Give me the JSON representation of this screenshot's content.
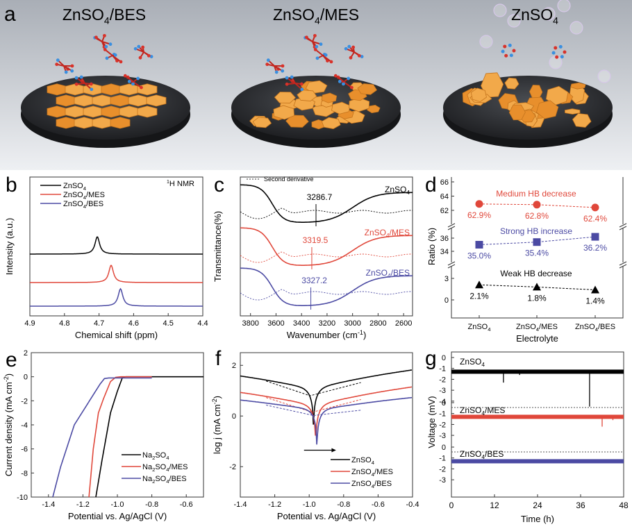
{
  "panel_a": {
    "label": "a",
    "scenes": [
      {
        "title": "ZnSO4/BES",
        "title_main": "ZnSO",
        "title_sub": "4",
        "title_suffix": "/BES",
        "description": "flat, dense hexagonal Zn deposit with BES molecules"
      },
      {
        "title": "ZnSO4/MES",
        "title_main": "ZnSO",
        "title_sub": "4",
        "title_suffix": "/MES",
        "description": "moderately ordered Zn plates with MES molecules"
      },
      {
        "title": "ZnSO4",
        "title_main": "ZnSO",
        "title_sub": "4",
        "title_suffix": "",
        "description": "random dendritic Zn plates with hydrogen bubbles"
      }
    ]
  },
  "chart_data": [
    {
      "id": "b",
      "type": "line",
      "title": "",
      "annotation": "1H NMR",
      "xlabel": "Chemical shift (ppm)",
      "ylabel": "Intensity (a.u.)",
      "xlim": [
        4.9,
        4.4
      ],
      "x_ticks": [
        "4.9",
        "4.8",
        "4.7",
        "4.6",
        "4.5",
        "4.4"
      ],
      "legend": "top-left",
      "series": [
        {
          "name": "ZnSO4",
          "color": "#000000",
          "peak_ppm": 4.705
        },
        {
          "name": "ZnSO4/MES",
          "color": "#e0473a",
          "peak_ppm": 4.665
        },
        {
          "name": "ZnSO4/BES",
          "color": "#4b4aa3",
          "peak_ppm": 4.638
        }
      ]
    },
    {
      "id": "c",
      "type": "line",
      "xlabel": "Wavenumber (cm-1)",
      "ylabel": "Transmittance(%)",
      "xlim": [
        3880,
        2530
      ],
      "x_ticks": [
        "3800",
        "3600",
        "3400",
        "3200",
        "3000",
        "2800",
        "2600"
      ],
      "legend_entries": [
        "Second derivative"
      ],
      "series": [
        {
          "name": "ZnSO4",
          "color": "#000000",
          "minimum_cm1": 3286.7,
          "label": "3286.7"
        },
        {
          "name": "ZnSO4/MES",
          "color": "#e0473a",
          "minimum_cm1": 3319.5,
          "label": "3319.5"
        },
        {
          "name": "ZnSO4/BES",
          "color": "#4b4aa3",
          "minimum_cm1": 3327.2,
          "label": "3327.2"
        }
      ]
    },
    {
      "id": "d",
      "type": "scatter",
      "xlabel": "Electrolyte",
      "ylabel": "Ratio (%)",
      "categories": [
        "ZnSO4",
        "ZnSO4/MES",
        "ZnSO4/BES"
      ],
      "y_ticks_top": [
        "66",
        "64",
        "62"
      ],
      "y_ticks_mid": [
        "36",
        "34"
      ],
      "y_ticks_bot": [
        "3",
        "0"
      ],
      "series": [
        {
          "name": "Medium HB decrease",
          "color": "#e0473a",
          "marker": "circle",
          "values": [
            62.9,
            62.8,
            62.4
          ],
          "labels": [
            "62.9%",
            "62.8%",
            "62.4%"
          ]
        },
        {
          "name": "Strong HB increase",
          "color": "#4b4aa3",
          "marker": "square",
          "values": [
            35.0,
            35.4,
            36.2
          ],
          "labels": [
            "35.0%",
            "35.4%",
            "36.2%"
          ]
        },
        {
          "name": "Weak HB decrease",
          "color": "#000000",
          "marker": "triangle",
          "values": [
            2.1,
            1.8,
            1.4
          ],
          "labels": [
            "2.1%",
            "1.8%",
            "1.4%"
          ]
        }
      ]
    },
    {
      "id": "e",
      "type": "line",
      "xlabel": "Potential vs. Ag/AgCl (V)",
      "ylabel": "Current density (mA cm-2)",
      "xlim": [
        -1.5,
        -0.5
      ],
      "ylim": [
        -10,
        2
      ],
      "x_ticks": [
        "-1.4",
        "-1.2",
        "-1.0",
        "-0.8",
        "-0.6"
      ],
      "y_ticks": [
        "2",
        "0",
        "-2",
        "-4",
        "-6",
        "-8",
        "-10"
      ],
      "legend": "bottom-right",
      "series": [
        {
          "name": "Na2SO4",
          "color": "#000000",
          "points": [
            [
              -1.125,
              -10
            ],
            [
              -1.09,
              -7
            ],
            [
              -1.04,
              -3
            ],
            [
              -1.0,
              -1.2
            ],
            [
              -0.97,
              -0.05
            ],
            [
              -0.95,
              0
            ],
            [
              -0.5,
              0
            ]
          ]
        },
        {
          "name": "Na2SO4/MES",
          "color": "#e0473a",
          "points": [
            [
              -1.165,
              -10
            ],
            [
              -1.14,
              -6
            ],
            [
              -1.11,
              -3
            ],
            [
              -1.08,
              -1.8
            ],
            [
              -1.04,
              -0.4
            ],
            [
              -1.01,
              -0.05
            ],
            [
              -0.98,
              0
            ],
            [
              -0.8,
              0
            ]
          ]
        },
        {
          "name": "Na2SO4/BES",
          "color": "#4b4aa3",
          "points": [
            [
              -1.375,
              -10
            ],
            [
              -1.33,
              -7.5
            ],
            [
              -1.25,
              -4
            ],
            [
              -1.14,
              -1.5
            ],
            [
              -1.1,
              -0.6
            ],
            [
              -1.075,
              -0.15
            ],
            [
              -1.05,
              -0.1
            ],
            [
              -0.8,
              -0.1
            ]
          ]
        }
      ]
    },
    {
      "id": "f",
      "type": "line",
      "xlabel": "Potential vs. Ag/AgCl (V)",
      "ylabel": "log j (mA cm-2)",
      "xlim": [
        -1.4,
        -0.4
      ],
      "ylim": [
        -3.2,
        2.5
      ],
      "x_ticks": [
        "-1.4",
        "-1.2",
        "-1.0",
        "-0.8",
        "-0.6",
        "-0.4"
      ],
      "y_ticks": [
        "2",
        "0",
        "-2"
      ],
      "legend": "bottom-right",
      "annotation": "arrow indicating positive shift of corrosion potential",
      "series": [
        {
          "name": "ZnSO4",
          "color": "#000000",
          "corrosion_potential": -0.975,
          "min_logj": -2.85,
          "left_end": 1.58,
          "right_end": 1.82
        },
        {
          "name": "ZnSO4/MES",
          "color": "#e0473a",
          "corrosion_potential": -0.962,
          "min_logj": -2.7,
          "left_end": 0.93,
          "right_end": 1.15
        },
        {
          "name": "ZnSO4/BES",
          "color": "#4b4aa3",
          "corrosion_potential": -0.955,
          "min_logj": -1.9,
          "left_end": 0.63,
          "right_end": 0.73
        }
      ]
    },
    {
      "id": "g",
      "type": "line",
      "xlabel": "Time (h)",
      "ylabel": "Voltage (mV)",
      "xlim": [
        0,
        48
      ],
      "x_ticks": [
        "0",
        "12",
        "24",
        "36",
        "48"
      ],
      "subplot_y_ticks": [
        "0",
        "-1",
        "-2",
        "-3",
        "-4"
      ],
      "bottom_y_ticks": [
        "0",
        "-1",
        "-2",
        "-3"
      ],
      "series": [
        {
          "name": "ZnSO4",
          "color": "#000000",
          "baseline_mV": -1.3,
          "spikes": [
            [
              14.5,
              -2.3
            ],
            [
              19,
              -1.6
            ],
            [
              38.5,
              -4.5
            ]
          ]
        },
        {
          "name": "ZnSO4/MES",
          "color": "#e0473a",
          "baseline_mV": -1.3,
          "spikes": [
            [
              42,
              -2.2
            ],
            [
              45,
              -1.6
            ]
          ]
        },
        {
          "name": "ZnSO4/BES",
          "color": "#4b4aa3",
          "baseline_mV": -1.3,
          "spikes": []
        }
      ]
    }
  ],
  "panel_labels": {
    "b": "b",
    "c": "c",
    "d": "d",
    "e": "e",
    "f": "f",
    "g": "g"
  },
  "texts": {
    "b_nmr": "H NMR",
    "b_nmr_sup": "1",
    "c_legend": "Second derivative",
    "c_labels": [
      "ZnSO",
      "ZnSO",
      "ZnSO"
    ],
    "d_sub": "4"
  }
}
